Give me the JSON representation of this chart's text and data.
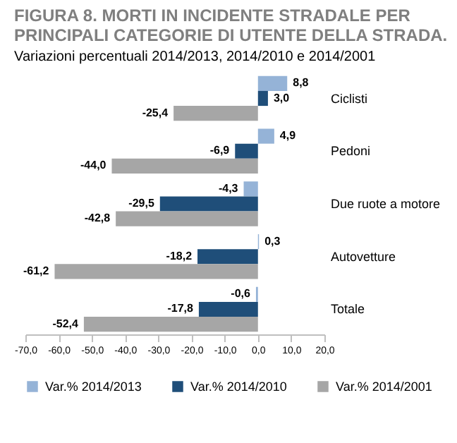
{
  "chart_data": {
    "type": "bar",
    "orientation": "horizontal",
    "title": "FIGURA 8. MORTI IN INCIDENTE STRADALE PER\nPRINCIPALI CATEGORIE DI UTENTE DELLA STRADA.",
    "subtitle": "Variazioni percentuali 2014/2013, 2014/2010  e 2014/2001",
    "categories": [
      "Ciclisti",
      "Pedoni",
      "Due ruote a motore",
      "Autovetture",
      "Totale"
    ],
    "series": [
      {
        "name": "Var.% 2014/2013",
        "color": "#95b3d7",
        "values": [
          8.8,
          4.9,
          -4.3,
          0.3,
          -0.6
        ],
        "value_labels": [
          "8,8",
          "4,9",
          "-4,3",
          "0,3",
          "-0,6"
        ]
      },
      {
        "name": "Var.% 2014/2010",
        "color": "#1f4e79",
        "values": [
          3.0,
          -6.9,
          -29.5,
          -18.2,
          -17.8
        ],
        "value_labels": [
          "3,0",
          "-6,9",
          "-29,5",
          "-18,2",
          "-17,8"
        ]
      },
      {
        "name": "Var.% 2014/2001",
        "color": "#a6a6a6",
        "values": [
          -25.4,
          -44.0,
          -42.8,
          -61.2,
          -52.4
        ],
        "value_labels": [
          "-25,4",
          "-44,0",
          "-42,8",
          "-61,2",
          "-52,4"
        ]
      }
    ],
    "xlim": [
      -70,
      20
    ],
    "xticks": [
      {
        "value": -70,
        "label": "-70,0"
      },
      {
        "value": -60,
        "label": "-60,0"
      },
      {
        "value": -50,
        "label": "-50,0"
      },
      {
        "value": -40,
        "label": "-40,0"
      },
      {
        "value": -30,
        "label": "-30,0"
      },
      {
        "value": -20,
        "label": "-20,0"
      },
      {
        "value": -10,
        "label": "-10,0"
      },
      {
        "value": 0,
        "label": "0,0"
      },
      {
        "value": 10,
        "label": "10,0"
      },
      {
        "value": 20,
        "label": "20,0"
      }
    ],
    "grid": false,
    "legend": "bottom"
  }
}
